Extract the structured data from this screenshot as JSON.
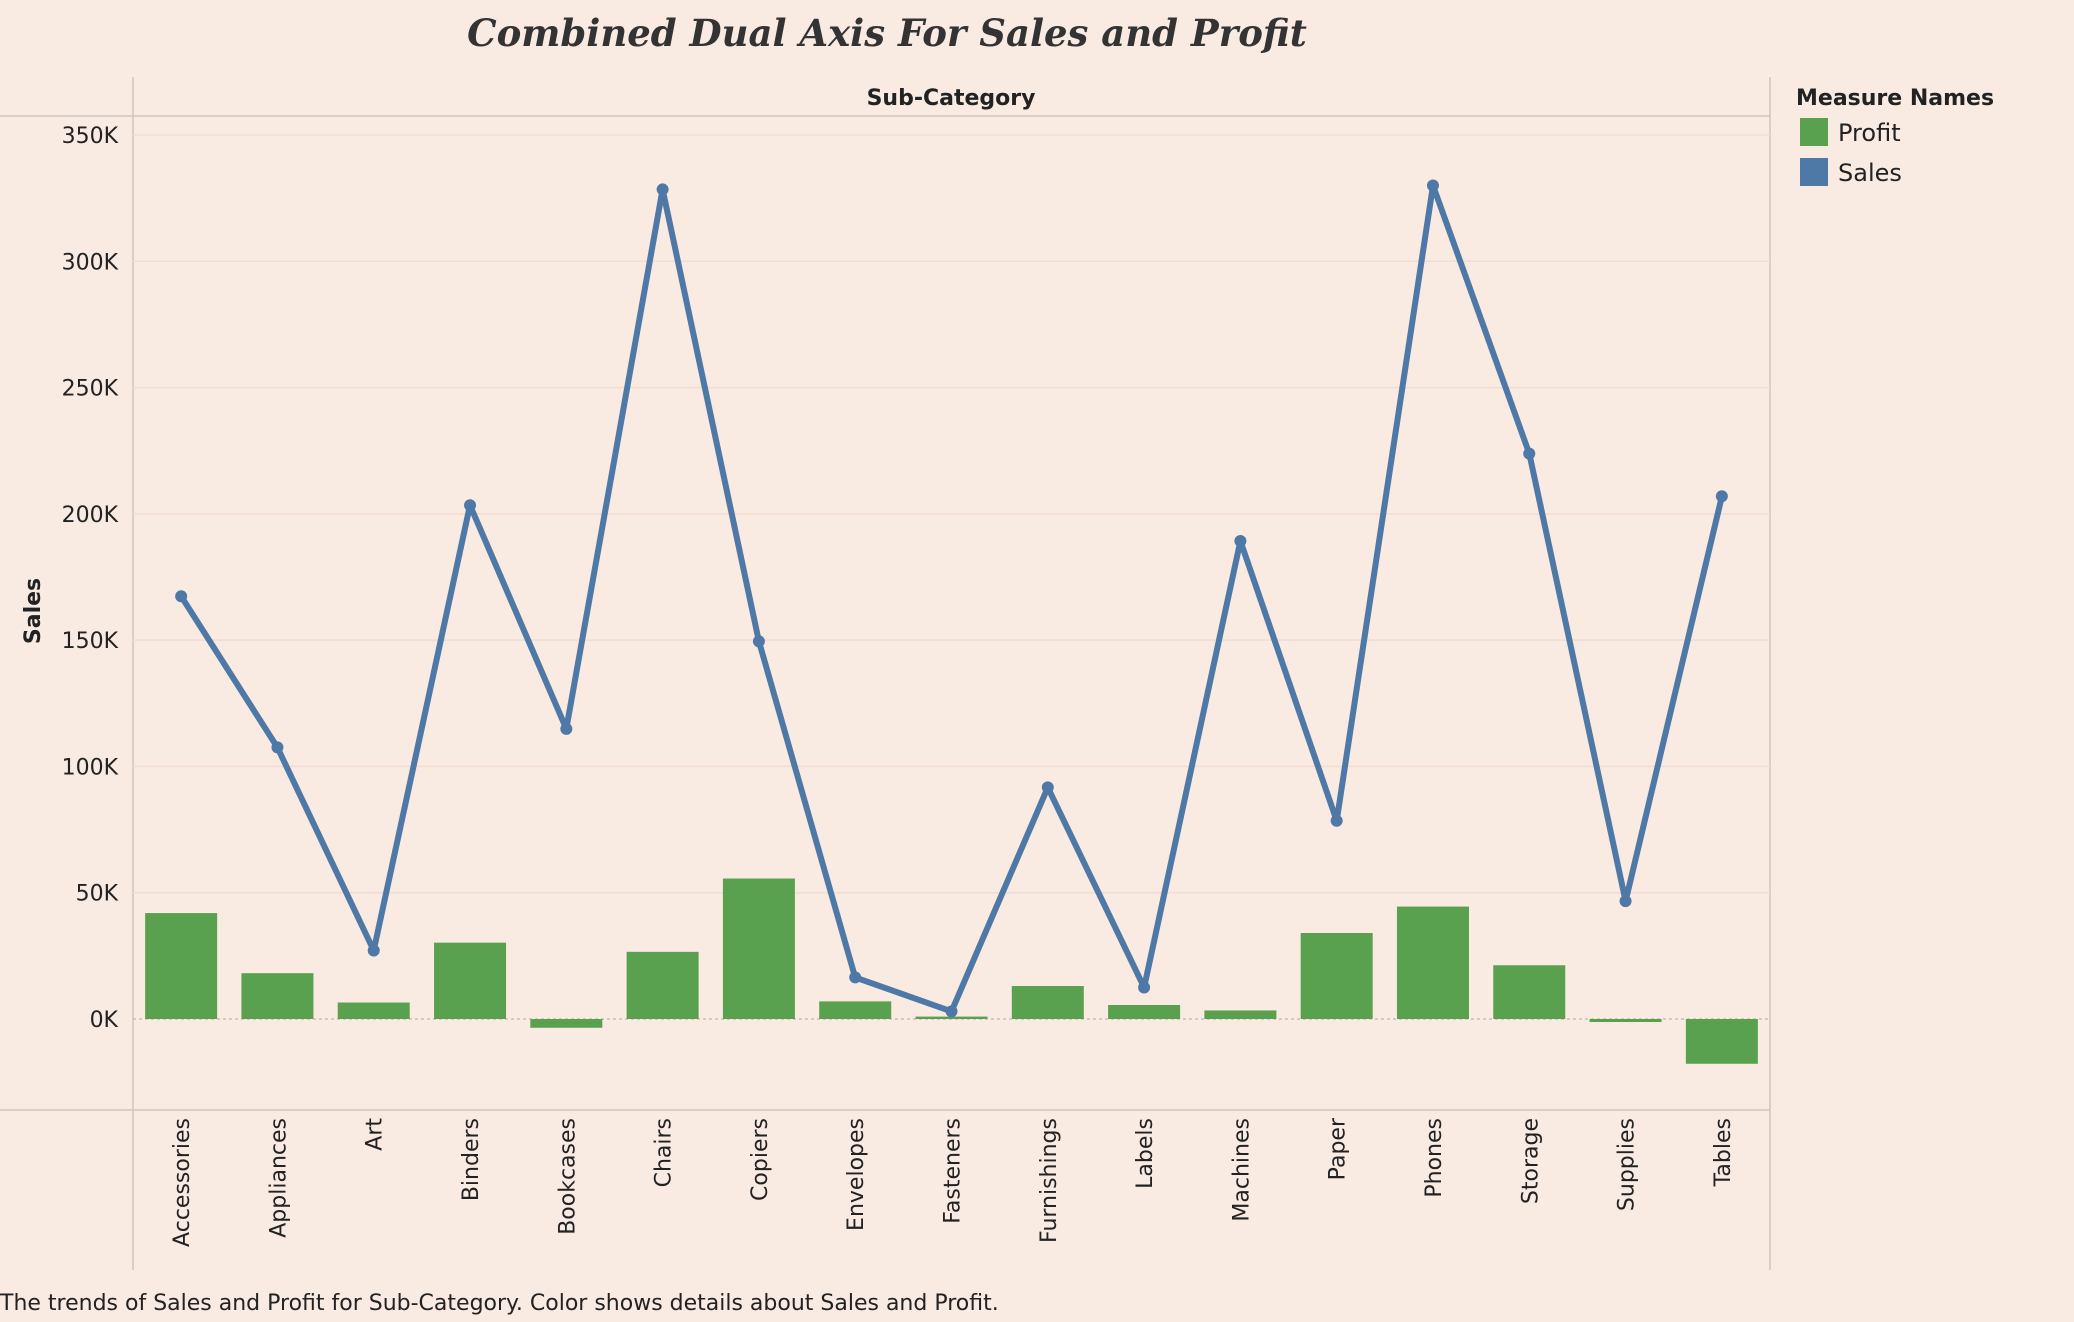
{
  "chart_data": {
    "type": "bar",
    "title": "Combined Dual Axis For Sales and Profit",
    "column_header": "Sub-Category",
    "ylabel": "Sales",
    "ylim": [
      -35000,
      360000
    ],
    "yticks": [
      0,
      50000,
      100000,
      150000,
      200000,
      250000,
      300000,
      350000
    ],
    "ytick_labels": [
      "0K",
      "50K",
      "100K",
      "150K",
      "200K",
      "250K",
      "300K",
      "350K"
    ],
    "grid": true,
    "categories": [
      "Accessories",
      "Appliances",
      "Art",
      "Binders",
      "Bookcases",
      "Chairs",
      "Copiers",
      "Envelopes",
      "Fasteners",
      "Furnishings",
      "Labels",
      "Machines",
      "Paper",
      "Phones",
      "Storage",
      "Supplies",
      "Tables"
    ],
    "series": [
      {
        "name": "Profit",
        "mark": "bar",
        "color": "#59a14f",
        "values": [
          41937,
          18138,
          6528,
          30222,
          -3473,
          26590,
          55618,
          6964,
          950,
          13059,
          5546,
          3385,
          34054,
          44516,
          21279,
          -1189,
          -17725
        ]
      },
      {
        "name": "Sales",
        "mark": "line",
        "color": "#4e79a7",
        "values": [
          167380,
          107532,
          27119,
          203413,
          114880,
          328449,
          149528,
          16476,
          3024,
          91705,
          12486,
          189239,
          78479,
          330007,
          223844,
          46674,
          206966
        ]
      }
    ],
    "legend": {
      "title": "Measure Names",
      "position": "top-right",
      "entries": [
        {
          "label": "Profit",
          "color": "#59a14f"
        },
        {
          "label": "Sales",
          "color": "#4e79a7"
        }
      ]
    }
  },
  "caption": "The trends of Sales and Profit for Sub-Category.  Color shows details about Sales and Profit."
}
